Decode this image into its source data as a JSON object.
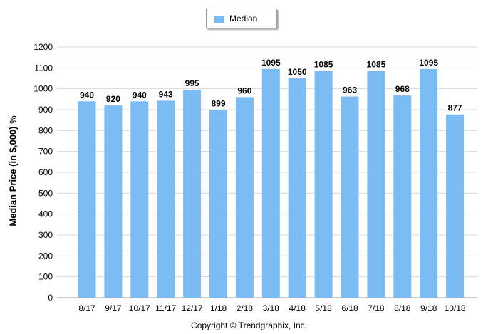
{
  "chart_data": {
    "type": "bar",
    "title": "",
    "xlabel": "",
    "ylabel": "Median Price (in $,000)",
    "ylabel_unit": "%",
    "ylim": [
      0,
      1200
    ],
    "yticks": [
      0,
      100,
      200,
      300,
      400,
      500,
      600,
      700,
      800,
      900,
      1000,
      1100,
      1200
    ],
    "grid": true,
    "legend": "top-center",
    "categories": [
      "8/17",
      "9/17",
      "10/17",
      "11/17",
      "12/17",
      "1/18",
      "2/18",
      "3/18",
      "4/18",
      "5/18",
      "6/18",
      "7/18",
      "8/18",
      "9/18",
      "10/18"
    ],
    "series": [
      {
        "name": "Median",
        "color": "#7cbcf4",
        "values": [
          940,
          920,
          940,
          943,
          995,
          899,
          960,
          1095,
          1050,
          1085,
          963,
          1085,
          968,
          1095,
          877
        ]
      }
    ]
  },
  "footer": {
    "copyright": "Copyright © Trendgraphix, Inc."
  }
}
